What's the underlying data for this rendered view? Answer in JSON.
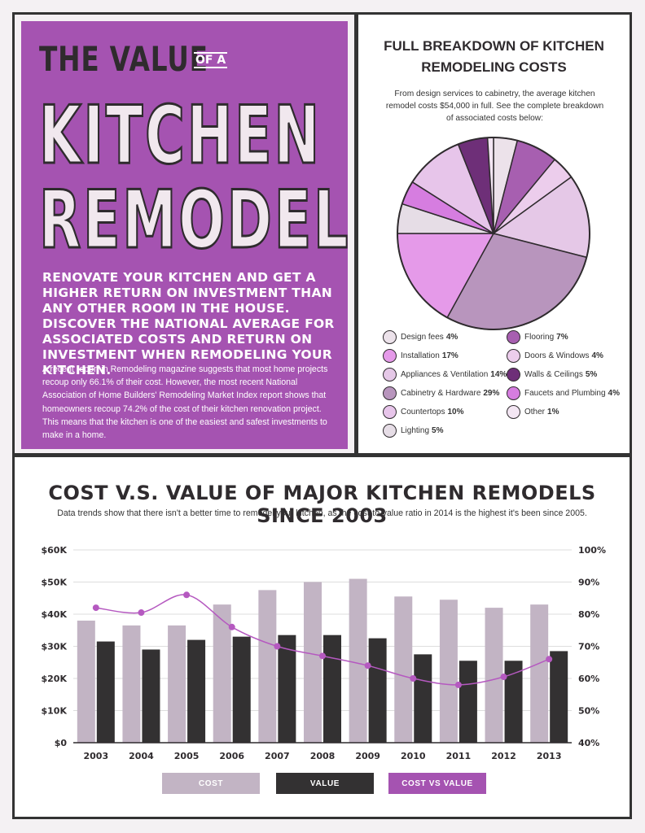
{
  "hero": {
    "title_line1": "THE VALUE",
    "title_of_a": "OF A",
    "title_line2": "KITCHEN",
    "title_line3": "REMODEL",
    "intro": "RENOVATE YOUR KITCHEN AND GET A HIGHER RETURN ON INVESTMENT THAN ANY OTHER ROOM IN THE HOUSE. DISCOVER THE NATIONAL AVERAGE FOR ASSOCIATED COSTS AND RETURN ON INVESTMENT WHEN REMODELING YOUR KITCHEN.",
    "body": "A recent report in Remodeling magazine suggests that most home projects recoup only 66.1% of their cost. However, the most recent National Association of Home Builders' Remodeling Market Index report shows that homeowners recoup 74.2% of the cost of their kitchen renovation project. This means that the kitchen is one of the easiest and safest investments to make in a home."
  },
  "breakdown": {
    "title_line1": "FULL BREAKDOWN OF KITCHEN",
    "title_line2": "REMODELING COSTS",
    "description": "From design services to cabinetry, the average kitchen remodel costs $54,000 in full. See the complete breakdown of associated costs below:",
    "legend": [
      {
        "name": "Design fees",
        "value_label": "4%"
      },
      {
        "name": "Installation",
        "value_label": "17%"
      },
      {
        "name": "Appliances & Ventilation",
        "value_label": "14%"
      },
      {
        "name": "Cabinetry & Hardware",
        "value_label": "29%"
      },
      {
        "name": "Countertops",
        "value_label": "10%"
      },
      {
        "name": "Lighting",
        "value_label": "5%"
      },
      {
        "name": "Flooring",
        "value_label": "7%"
      },
      {
        "name": "Doors & Windows",
        "value_label": "4%"
      },
      {
        "name": "Walls & Ceilings",
        "value_label": "5%"
      },
      {
        "name": "Faucets and Plumbing",
        "value_label": "4%"
      },
      {
        "name": "Other",
        "value_label": "1%"
      }
    ]
  },
  "bar_chart": {
    "title": "COST V.S. VALUE OF MAJOR KITCHEN REMODELS SINCE 2003",
    "subtitle": "Data trends show that there isn't a better time to remodel your kitchen, as the cost-to-value ratio in 2014 is the highest it's been since 2005.",
    "left_ticks": [
      "$0",
      "$10K",
      "$20K",
      "$30K",
      "$40K",
      "$50K",
      "$60K"
    ],
    "right_ticks": [
      "40%",
      "50%",
      "60%",
      "70%",
      "80%",
      "90%",
      "100%"
    ],
    "legend": [
      {
        "label": "COST"
      },
      {
        "label": "VALUE"
      },
      {
        "label": "COST vs VALUE"
      }
    ]
  },
  "colors": {
    "purple": "#a553b1",
    "cost_bar": "#c2b4c4",
    "value_bar": "#333132",
    "line": "#b559c0",
    "dark": "#2f2b2e"
  },
  "chart_data": [
    {
      "type": "pie",
      "title": "FULL BREAKDOWN OF KITCHEN REMODELING COSTS",
      "labels": [
        "Design fees",
        "Flooring",
        "Doors & Windows",
        "Appliances & Ventilation",
        "Cabinetry & Hardware",
        "Installation",
        "Lighting",
        "Faucets and Plumbing",
        "Countertops",
        "Walls & Ceilings",
        "Other"
      ],
      "values": [
        4,
        7,
        4,
        14,
        29,
        17,
        5,
        4,
        10,
        5,
        1
      ],
      "colors": [
        "#ece2ea",
        "#a75fb0",
        "#eccdec",
        "#e5c8e7",
        "#b895bd",
        "#e59ae9",
        "#e6dde6",
        "#d67de0",
        "#e7c5ea",
        "#6e2f78",
        "#f3e6f3"
      ]
    },
    {
      "type": "bar",
      "title": "COST V.S. VALUE OF MAJOR KITCHEN REMODELS SINCE 2003",
      "categories": [
        "2003",
        "2004",
        "2005",
        "2006",
        "2007",
        "2008",
        "2009",
        "2010",
        "2011",
        "2012",
        "2013"
      ],
      "series": [
        {
          "name": "COST",
          "values": [
            38000,
            36500,
            36500,
            43000,
            47500,
            50000,
            51000,
            45500,
            44500,
            42000,
            43000
          ]
        },
        {
          "name": "VALUE",
          "values": [
            31500,
            29000,
            32000,
            33000,
            33500,
            33500,
            32500,
            27500,
            25500,
            25500,
            28500
          ]
        },
        {
          "name": "COST vs VALUE",
          "axis": "right",
          "values": [
            82,
            80.5,
            86,
            76,
            70,
            67,
            64,
            60,
            58,
            60.5,
            66
          ]
        }
      ],
      "ylim": [
        0,
        60000
      ],
      "y2lim": [
        40,
        100
      ],
      "grid": true
    }
  ]
}
